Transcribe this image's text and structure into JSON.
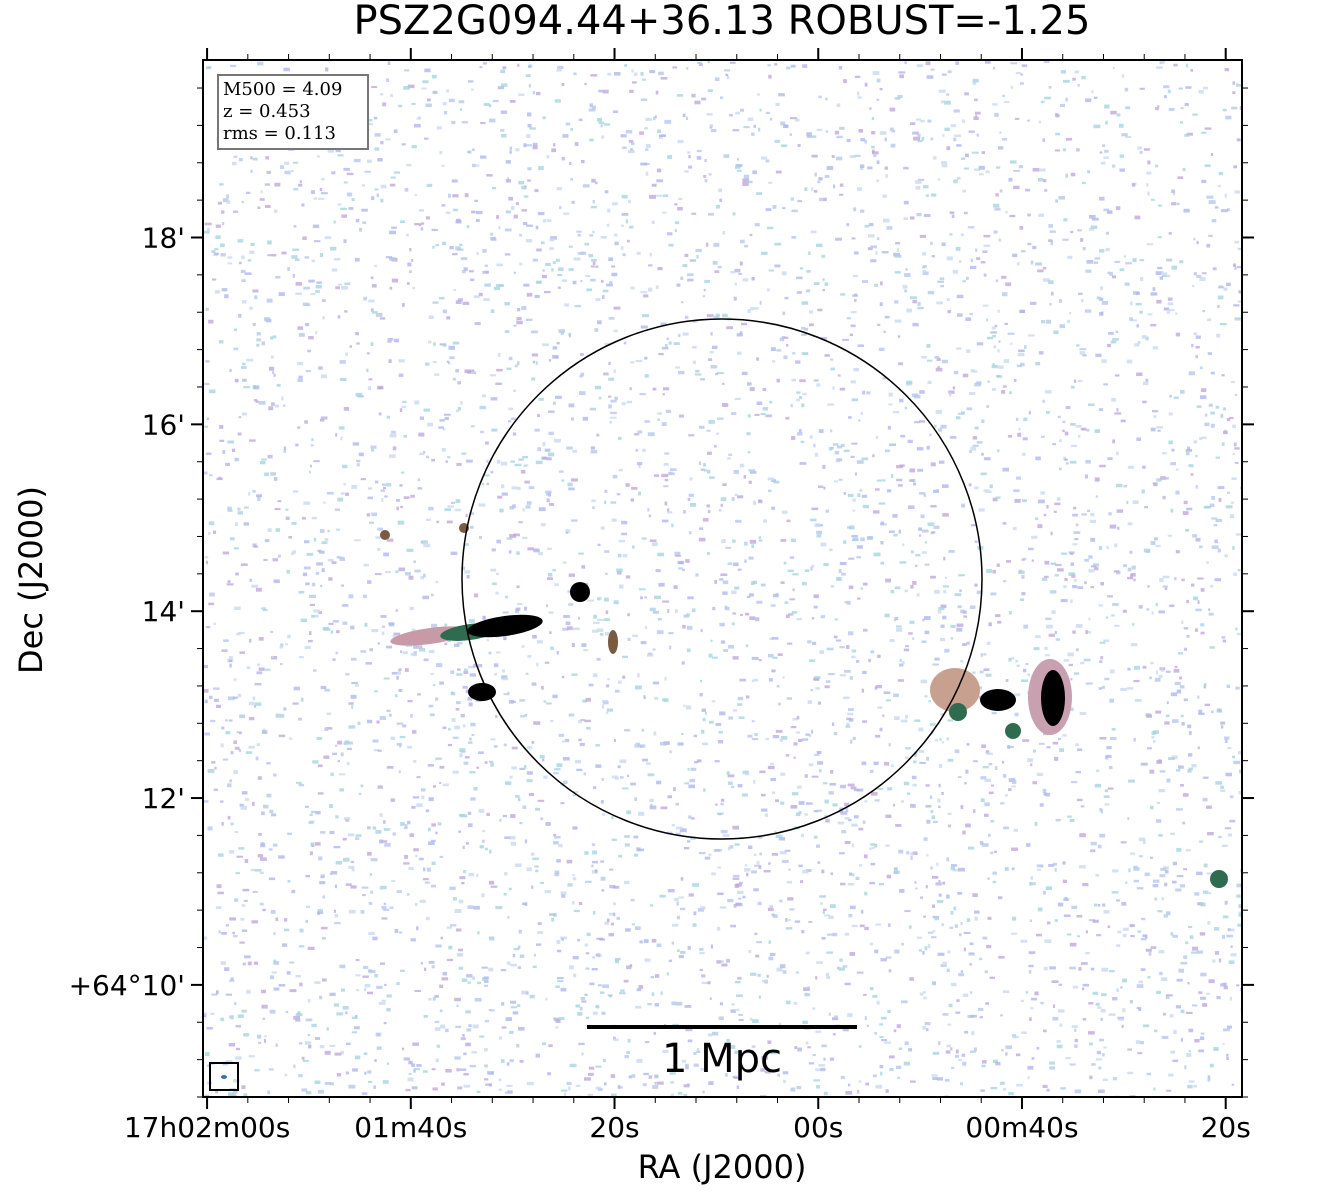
{
  "chart_data": {
    "type": "image",
    "title": "PSZ2G094.44+36.13 ROBUST=-1.25",
    "x_label": "RA (J2000)",
    "y_label": "Dec (J2000)",
    "annotations": [
      "M500 = 4.09",
      "z = 0.453",
      "rms = 0.113"
    ],
    "scale_bar_label": "1 Mpc",
    "xlim": [
      120.4,
      18.4
    ],
    "ylim": [
      8.8,
      19.9
    ],
    "xticks": [
      {
        "value": 120,
        "label": "17h02m00s"
      },
      {
        "value": 100,
        "label": "01m40s"
      },
      {
        "value": 80,
        "label": "20s"
      },
      {
        "value": 60,
        "label": "00s"
      },
      {
        "value": 40,
        "label": "00m40s"
      },
      {
        "value": 20,
        "label": "20s"
      }
    ],
    "yticks": [
      {
        "value": 10,
        "label": "+64°10'"
      },
      {
        "value": 12,
        "label": "12'"
      },
      {
        "value": 14,
        "label": "14'"
      },
      {
        "value": 16,
        "label": "16'"
      },
      {
        "value": 18,
        "label": "18'"
      }
    ]
  }
}
